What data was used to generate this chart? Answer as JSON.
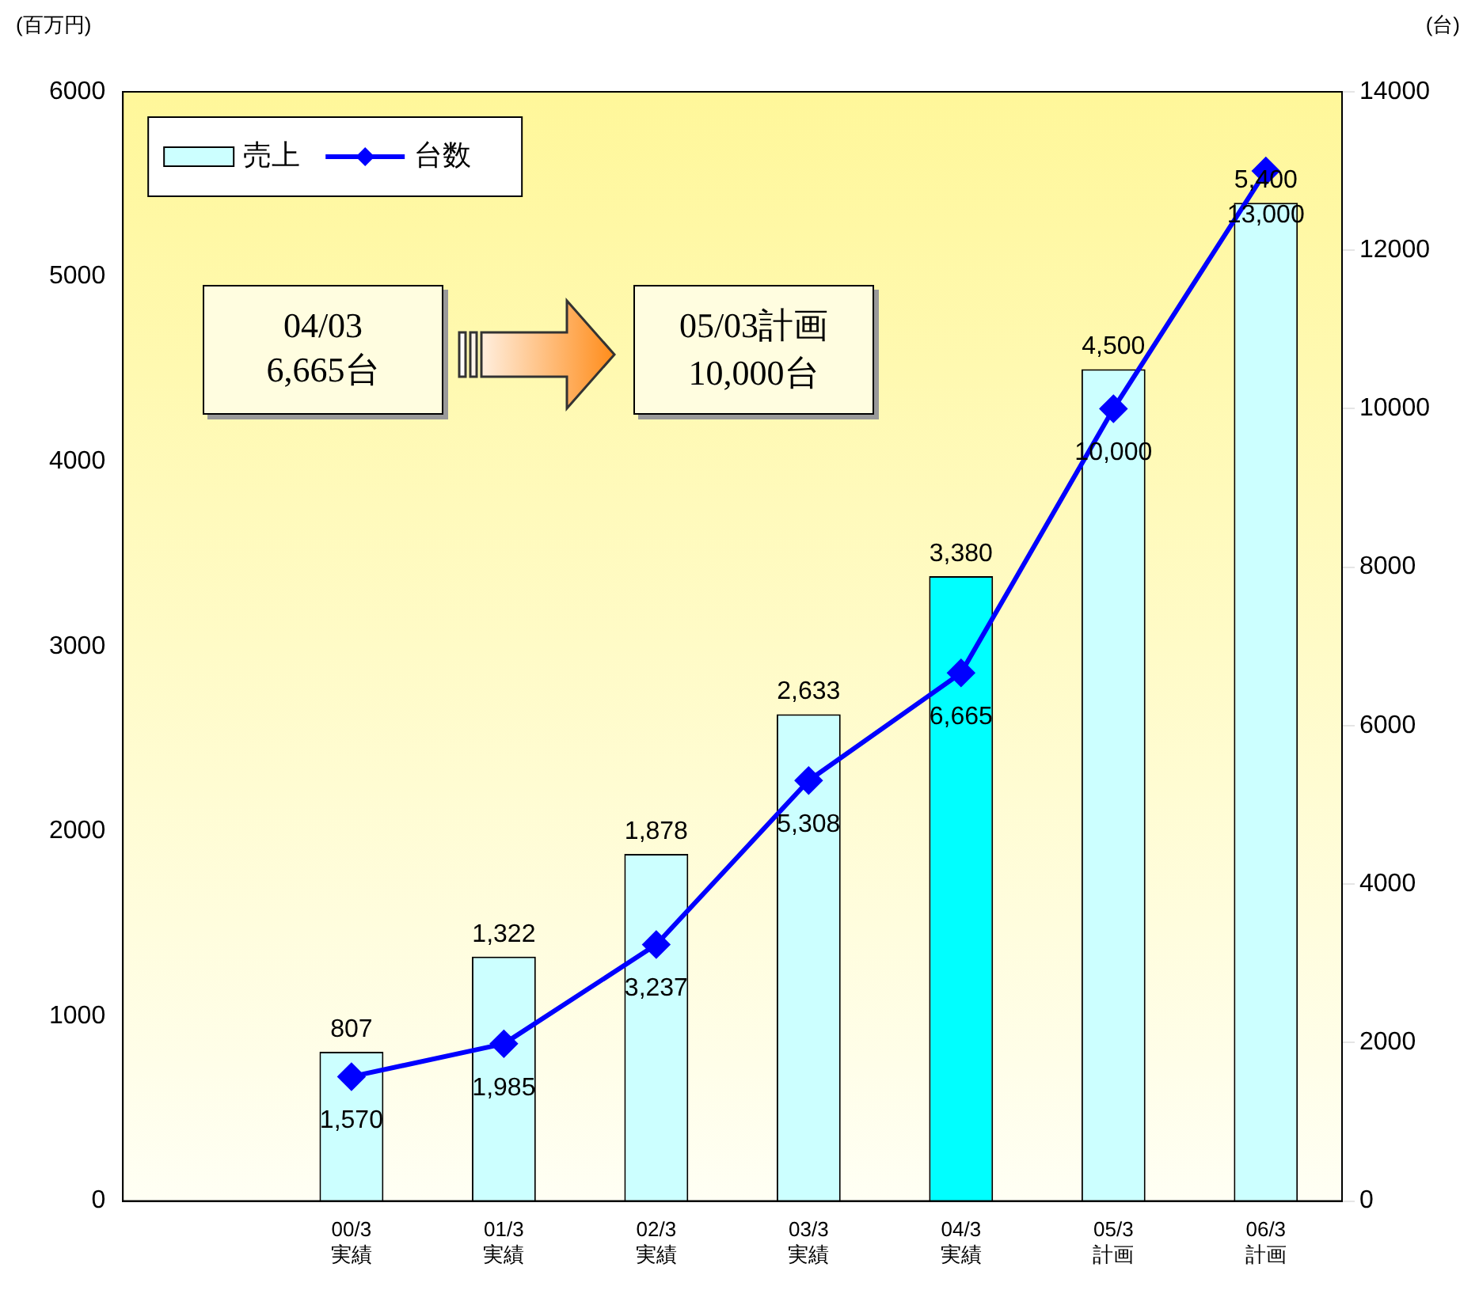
{
  "chart_data": {
    "type": "bar",
    "ylabel": "(百万円)",
    "y2label": "(台)",
    "categories": [
      null,
      "00/3\n実績",
      "01/3\n実績",
      "02/3\n実績",
      "03/3\n実績",
      "04/3\n実績",
      "05/3\n計画",
      "06/3\n計画"
    ],
    "series": [
      {
        "name": "売上",
        "color": "#ccffff",
        "value_labels": [
          null,
          "807",
          "1,322",
          "1,878",
          "2,633",
          "3,380",
          "4,500",
          "5,400"
        ],
        "colors": [
          "#ccffff",
          "#ccffff",
          "#ccffff",
          "#ccffff",
          "#ccffff",
          "#00ffff",
          "#ccffff",
          "#ccffff"
        ],
        "values": [
          null,
          807,
          1322,
          1878,
          2633,
          3380,
          4500,
          5400
        ]
      },
      {
        "name": "台数",
        "type": "line",
        "color": "#0000ff",
        "axis": "y2",
        "value_labels": [
          null,
          "1,570",
          "1,985",
          "3,237",
          "5,308",
          "6,665",
          "10,000",
          "13,000"
        ],
        "values": [
          null,
          1570,
          1985,
          3237,
          5308,
          6665,
          10000,
          13000
        ]
      }
    ],
    "ylim": [
      0,
      6000
    ],
    "yticks": [
      0,
      1000,
      2000,
      3000,
      4000,
      5000,
      6000
    ],
    "y2lim": [
      0,
      14000
    ],
    "y2ticks": [
      0,
      2000,
      4000,
      6000,
      8000,
      10000,
      12000,
      14000
    ],
    "grid": false,
    "legend": "top left",
    "marker": "diamond",
    "line_style": "solid",
    "annotations": [
      "04/03\n6,665台",
      "05/03計画\n10,000台"
    ]
  }
}
